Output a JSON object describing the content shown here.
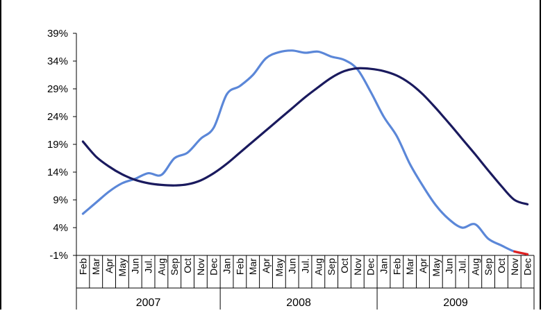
{
  "chart_data": {
    "type": "line",
    "title": "",
    "xlabel": "",
    "ylabel": "",
    "ylim": [
      -1,
      39
    ],
    "yticks": [
      "39%",
      "34%",
      "29%",
      "24%",
      "19%",
      "14%",
      "9%",
      "4%",
      "-1%"
    ],
    "categories": [
      "Feb",
      "Mar",
      "Apr",
      "May",
      "Jun",
      "Jul.",
      "Aug",
      "Sep",
      "Oct",
      "Nov",
      "Dec",
      "Jan",
      "Feb",
      "Mar",
      "Apr",
      "May",
      "Jun",
      "Jul.",
      "Aug",
      "Sep",
      "Oct",
      "Nov",
      "Dec",
      "Jan",
      "Feb",
      "Mar",
      "Apr",
      "May",
      "Jun",
      "Jul.",
      "Aug",
      "Sep",
      "Oct",
      "Nov",
      "Dec"
    ],
    "year_groups": [
      {
        "label": "2007",
        "start": 0,
        "end": 10
      },
      {
        "label": "2008",
        "start": 11,
        "end": 22
      },
      {
        "label": "2009",
        "start": 23,
        "end": 34
      }
    ],
    "series": [
      {
        "color": "#5b87d8",
        "values": [
          6.5,
          8.5,
          10.5,
          12.0,
          12.8,
          13.8,
          13.5,
          16.5,
          17.5,
          20.0,
          22.0,
          28.0,
          29.5,
          31.5,
          34.5,
          35.6,
          35.9,
          35.5,
          35.7,
          34.8,
          34.2,
          32.5,
          28.5,
          24.0,
          20.5,
          15.5,
          11.5,
          8.0,
          5.5,
          4.0,
          4.6,
          2.0,
          0.8,
          -0.3,
          -0.8
        ]
      },
      {
        "color": "#1a1a5e",
        "values": [
          19.5,
          16.8,
          15.0,
          13.6,
          12.6,
          12.0,
          11.7,
          11.6,
          11.8,
          12.5,
          13.8,
          15.5,
          17.5,
          19.5,
          21.5,
          23.5,
          25.5,
          27.5,
          29.3,
          31.0,
          32.2,
          32.7,
          32.6,
          32.2,
          31.4,
          30.0,
          28.0,
          25.5,
          22.8,
          20.0,
          17.2,
          14.3,
          11.5,
          9.0,
          8.2
        ]
      }
    ],
    "projection_segment": {
      "color": "#e02020",
      "from_index": 33,
      "to_index": 34
    }
  }
}
